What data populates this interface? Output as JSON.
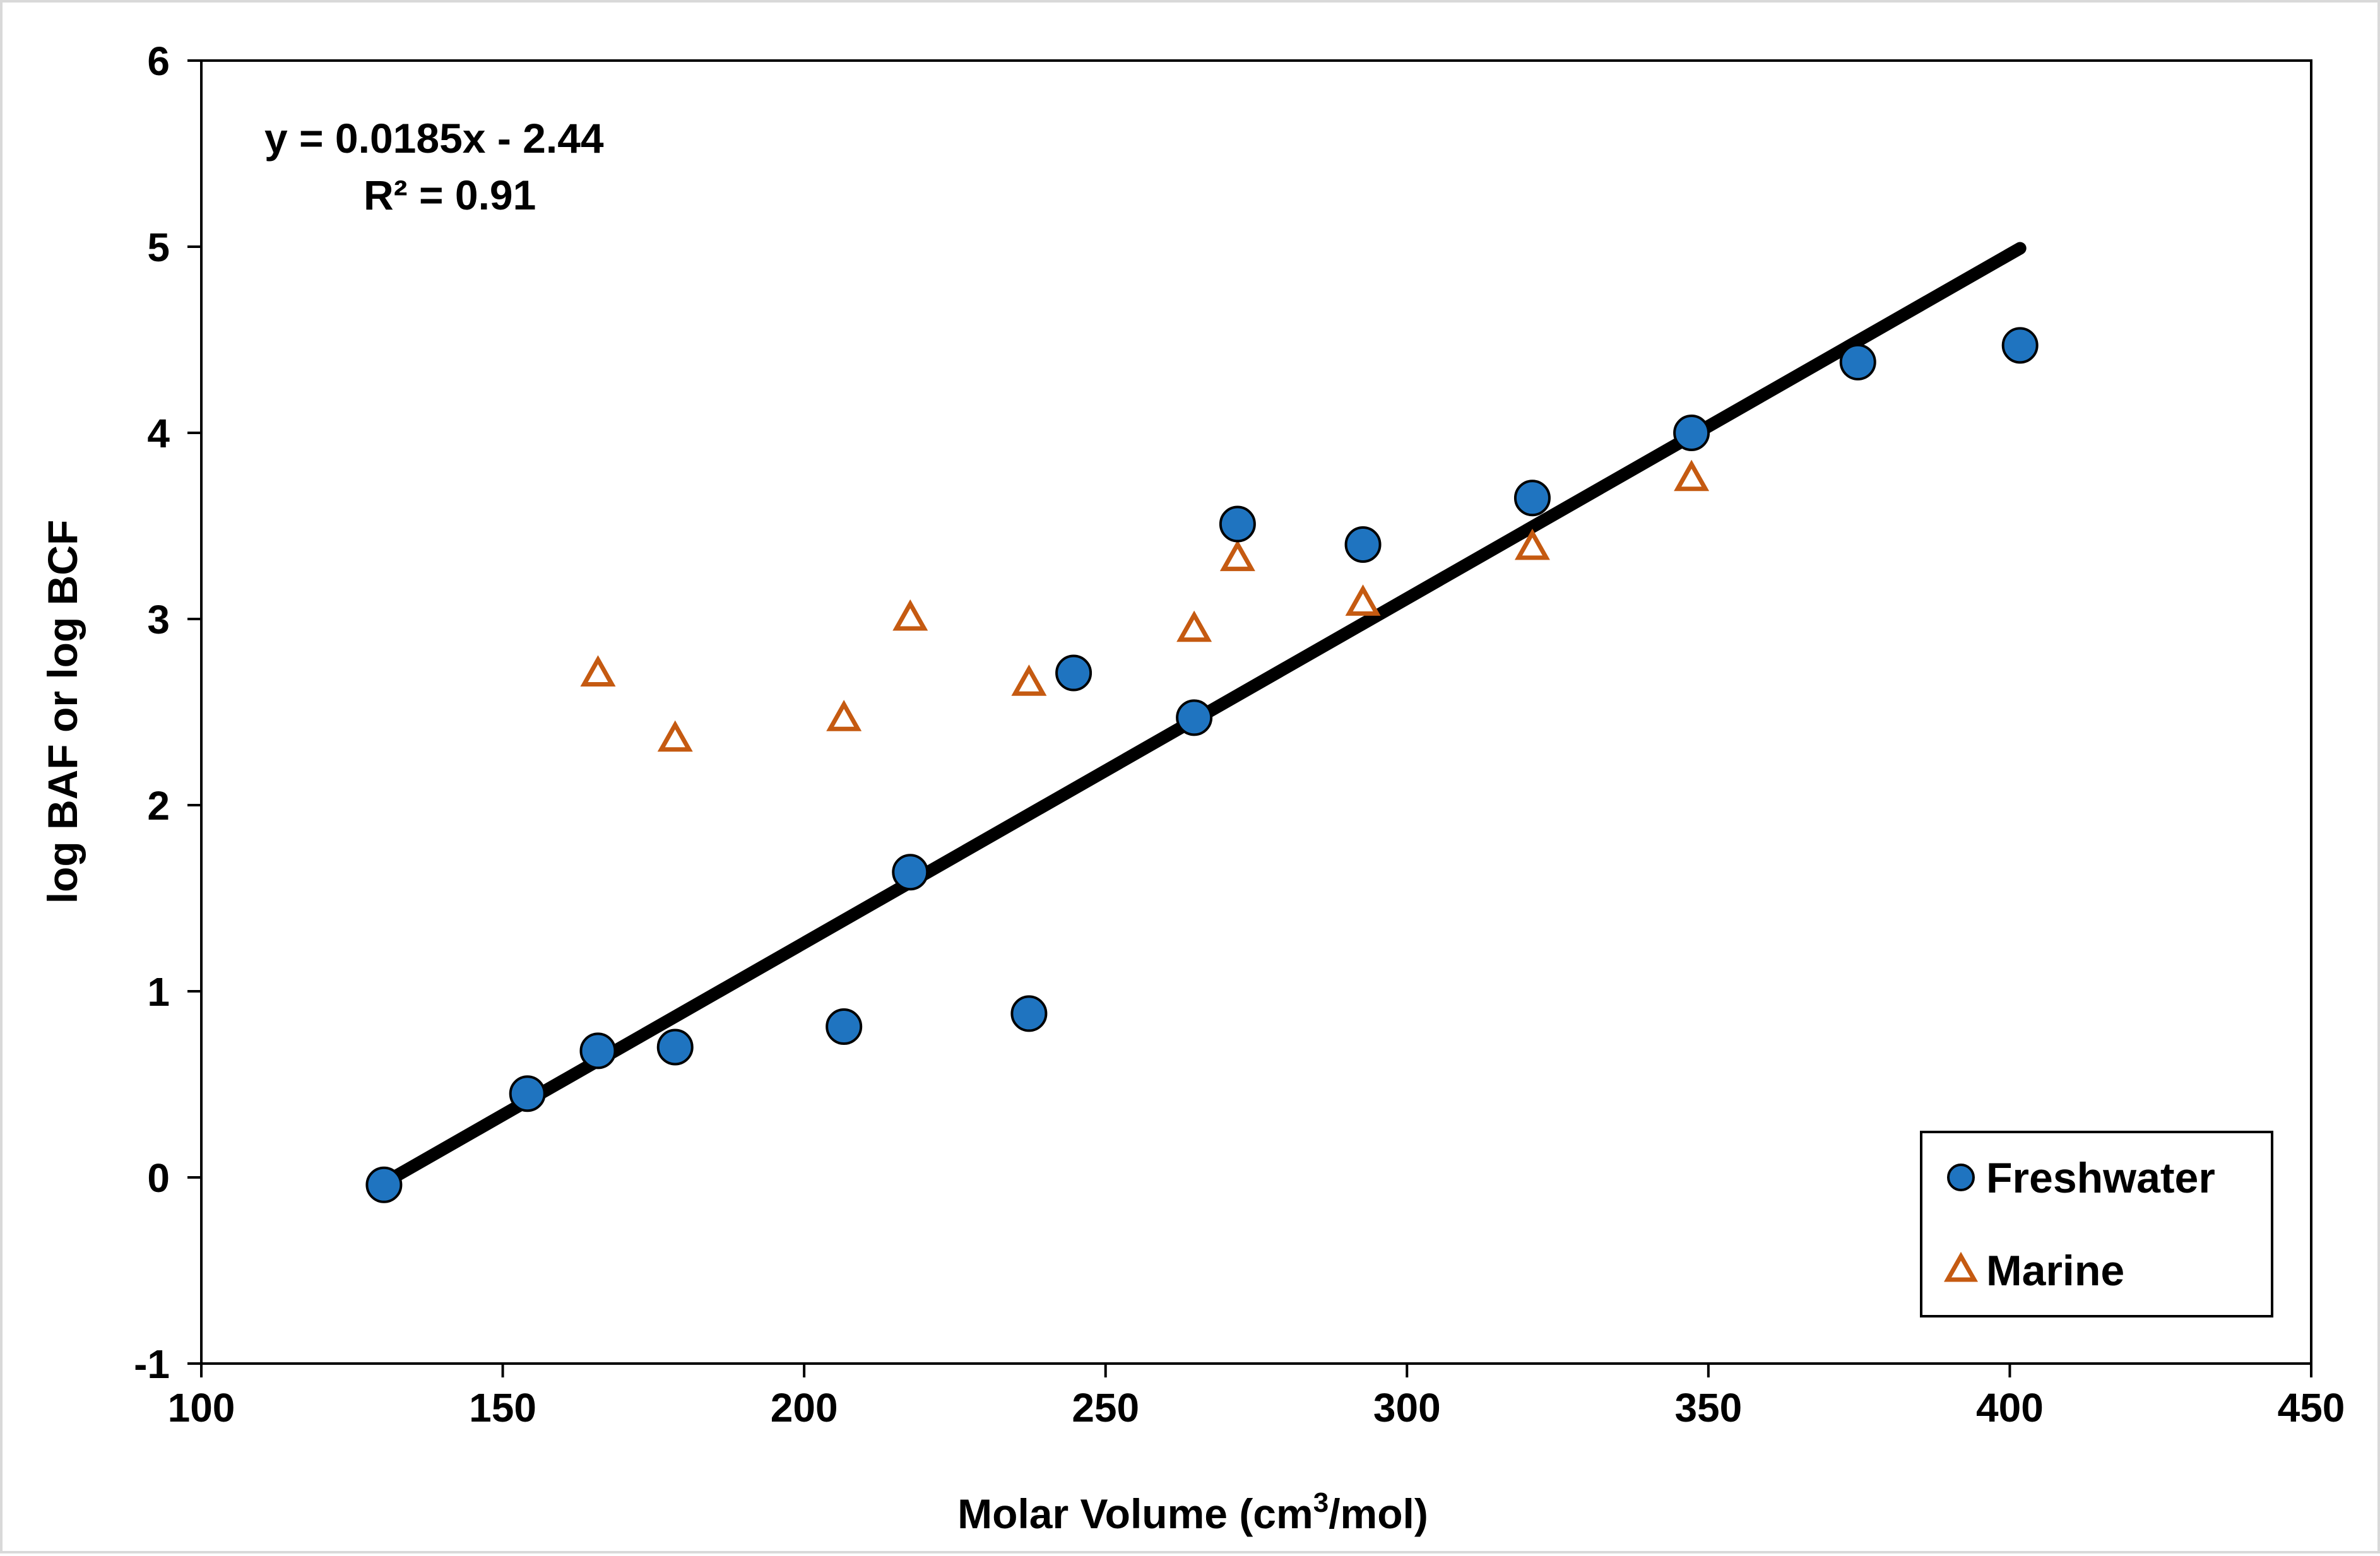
{
  "chart_data": {
    "type": "scatter",
    "title": "",
    "xlabel": "Molar Volume (cm",
    "xlabel_sup": "3",
    "xlabel_tail": "/mol)",
    "ylabel": "log BAF or log BCF",
    "xlim": [
      100,
      450
    ],
    "ylim": [
      -1,
      6
    ],
    "xticks": [
      100,
      150,
      200,
      250,
      300,
      350,
      400,
      450
    ],
    "yticks": [
      -1,
      0,
      1,
      2,
      3,
      4,
      5,
      6
    ],
    "grid": false,
    "legend_position": "bottom-right",
    "series": [
      {
        "name": "Freshwater",
        "marker": "circle",
        "color": "#1f74c0",
        "points": [
          {
            "x": 130.3,
            "y": -0.04
          },
          {
            "x": 154.1,
            "y": 0.45
          },
          {
            "x": 165.8,
            "y": 0.68
          },
          {
            "x": 178.6,
            "y": 0.7
          },
          {
            "x": 206.6,
            "y": 0.81
          },
          {
            "x": 217.6,
            "y": 1.64
          },
          {
            "x": 237.3,
            "y": 0.88
          },
          {
            "x": 244.7,
            "y": 2.71
          },
          {
            "x": 264.7,
            "y": 2.47
          },
          {
            "x": 271.9,
            "y": 3.51
          },
          {
            "x": 292.7,
            "y": 3.4
          },
          {
            "x": 320.8,
            "y": 3.65
          },
          {
            "x": 347.2,
            "y": 4.0
          },
          {
            "x": 374.8,
            "y": 4.38
          },
          {
            "x": 401.7,
            "y": 4.47
          }
        ]
      },
      {
        "name": "Marine",
        "marker": "triangle-open",
        "color": "#c55a11",
        "points": [
          {
            "x": 165.8,
            "y": 2.7
          },
          {
            "x": 178.6,
            "y": 2.35
          },
          {
            "x": 206.6,
            "y": 2.46
          },
          {
            "x": 217.6,
            "y": 3.0
          },
          {
            "x": 237.3,
            "y": 2.65
          },
          {
            "x": 264.7,
            "y": 2.94
          },
          {
            "x": 271.9,
            "y": 3.32
          },
          {
            "x": 292.7,
            "y": 3.08
          },
          {
            "x": 320.8,
            "y": 3.38
          },
          {
            "x": 347.2,
            "y": 3.75
          }
        ]
      }
    ],
    "trendline": {
      "slope": 0.0185,
      "intercept": -2.44,
      "x_from": 130.3,
      "x_to": 401.7,
      "color": "#000000"
    },
    "annotations": {
      "equation": "y = 0.0185x - 2.44",
      "r2_prefix": "R² = 0.91"
    }
  }
}
